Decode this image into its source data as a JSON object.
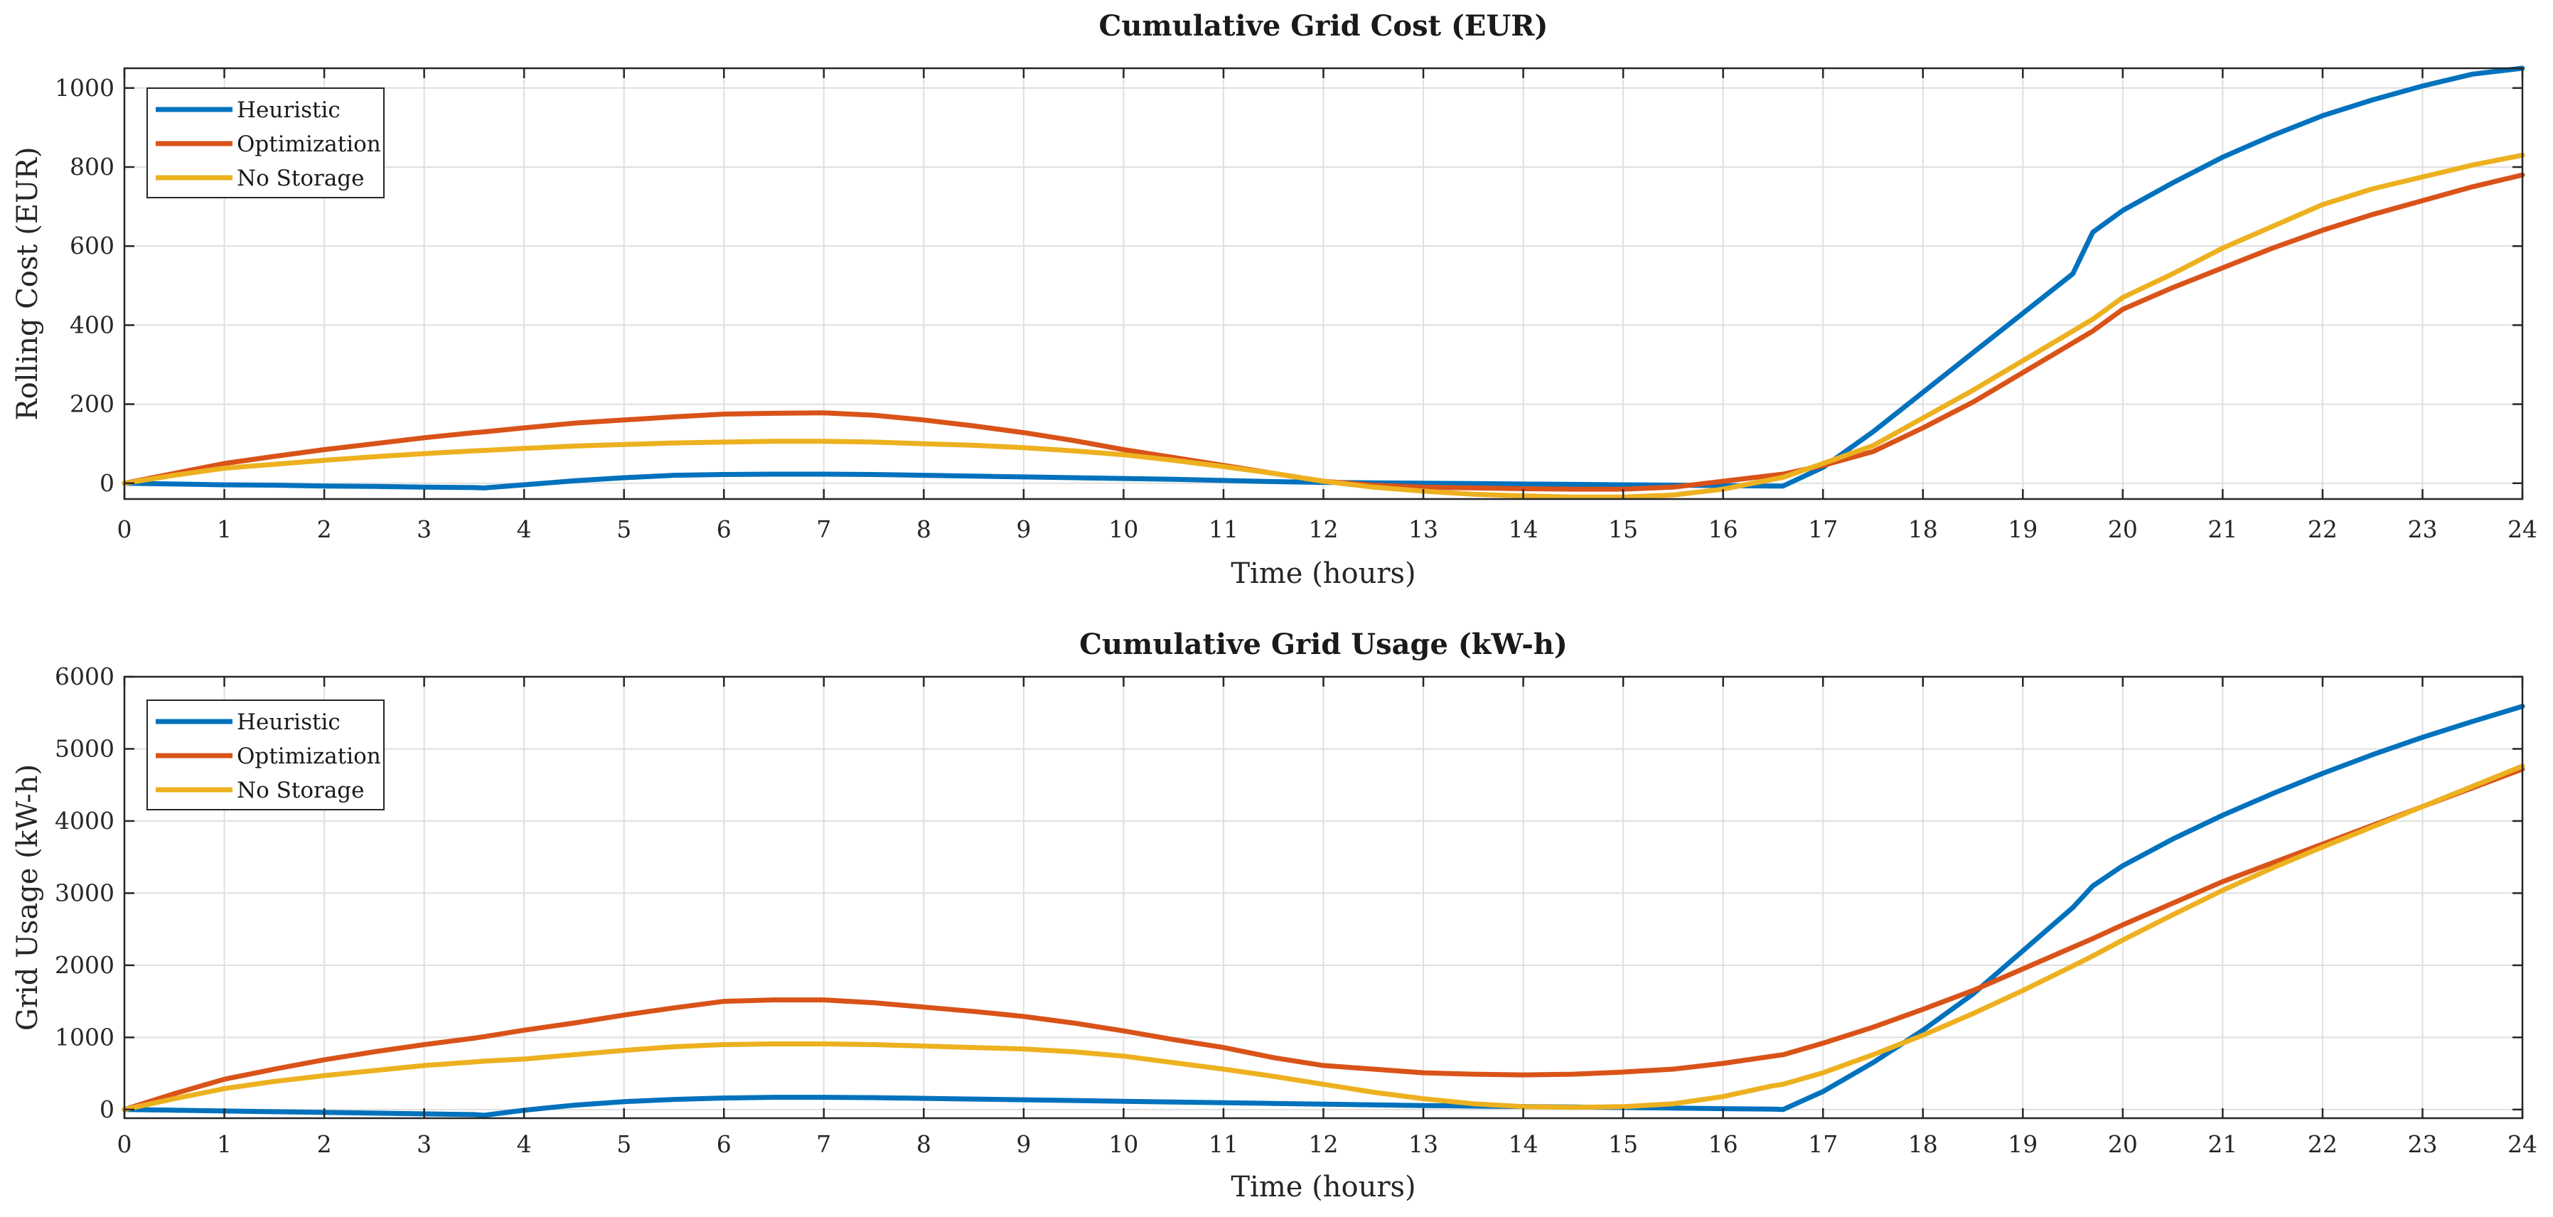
{
  "chart_data": [
    {
      "type": "line",
      "title": "Cumulative Grid Cost (EUR)",
      "xlabel": "Time (hours)",
      "ylabel": "Rolling Cost (EUR)",
      "xlim": [
        0,
        24
      ],
      "ylim": [
        -40,
        1050
      ],
      "xticks": [
        0,
        1,
        2,
        3,
        4,
        5,
        6,
        7,
        8,
        9,
        10,
        11,
        12,
        13,
        14,
        15,
        16,
        17,
        18,
        19,
        20,
        21,
        22,
        23,
        24
      ],
      "yticks": [
        0,
        200,
        400,
        600,
        800,
        1000
      ],
      "grid": true,
      "legend_position": "top-left",
      "x": [
        0,
        0.5,
        1,
        1.5,
        2,
        2.5,
        3,
        3.5,
        3.6,
        4,
        4.5,
        5,
        5.5,
        6,
        6.5,
        7,
        7.5,
        8,
        8.5,
        9,
        9.5,
        10,
        10.5,
        11,
        11.5,
        12,
        12.5,
        13,
        13.5,
        14,
        14.5,
        15,
        15.5,
        16,
        16.5,
        16.6,
        17,
        17.5,
        18,
        18.5,
        19,
        19.5,
        19.7,
        20,
        20.5,
        21,
        21.5,
        22,
        22.5,
        23,
        23.5,
        24
      ],
      "series": [
        {
          "name": "Heuristic",
          "color": "#0072BD",
          "values": [
            0,
            -2,
            -4,
            -5,
            -7,
            -8,
            -10,
            -11,
            -12,
            -4,
            6,
            14,
            20,
            22,
            23,
            23,
            22,
            20,
            18,
            16,
            14,
            12,
            10,
            7,
            4,
            2,
            1,
            0,
            -1,
            -2,
            -3,
            -4,
            -5,
            -6,
            -7,
            -7,
            40,
            130,
            230,
            330,
            430,
            530,
            635,
            690,
            760,
            825,
            880,
            930,
            970,
            1005,
            1035,
            1050
          ]
        },
        {
          "name": "Optimization",
          "color": "#D95319",
          "values": [
            0,
            25,
            50,
            68,
            85,
            100,
            115,
            128,
            130,
            140,
            152,
            160,
            168,
            175,
            177,
            178,
            172,
            160,
            145,
            128,
            108,
            85,
            65,
            45,
            25,
            5,
            -5,
            -10,
            -12,
            -14,
            -15,
            -15,
            -10,
            5,
            20,
            23,
            45,
            80,
            140,
            205,
            280,
            355,
            385,
            440,
            495,
            545,
            595,
            640,
            680,
            715,
            750,
            780
          ]
        },
        {
          "name": "No Storage",
          "color": "#EDB120",
          "values": [
            0,
            20,
            38,
            48,
            58,
            67,
            75,
            82,
            83,
            88,
            94,
            98,
            102,
            104,
            106,
            106,
            104,
            100,
            96,
            90,
            82,
            72,
            58,
            42,
            25,
            5,
            -10,
            -20,
            -28,
            -32,
            -35,
            -35,
            -30,
            -15,
            10,
            15,
            50,
            95,
            165,
            235,
            310,
            385,
            415,
            470,
            530,
            595,
            650,
            705,
            745,
            775,
            805,
            830
          ]
        }
      ]
    },
    {
      "type": "line",
      "title": "Cumulative Grid Usage (kW-h)",
      "xlabel": "Time (hours)",
      "ylabel": "Grid Usage (kW-h)",
      "xlim": [
        0,
        24
      ],
      "ylim": [
        -120,
        6000
      ],
      "xticks": [
        0,
        1,
        2,
        3,
        4,
        5,
        6,
        7,
        8,
        9,
        10,
        11,
        12,
        13,
        14,
        15,
        16,
        17,
        18,
        19,
        20,
        21,
        22,
        23,
        24
      ],
      "yticks": [
        0,
        1000,
        2000,
        3000,
        4000,
        5000,
        6000
      ],
      "grid": true,
      "legend_position": "top-left",
      "x": [
        0,
        0.5,
        1,
        1.5,
        2,
        2.5,
        3,
        3.5,
        3.6,
        4,
        4.5,
        5,
        5.5,
        6,
        6.5,
        7,
        7.5,
        8,
        8.5,
        9,
        9.5,
        10,
        10.5,
        11,
        11.5,
        12,
        12.5,
        13,
        13.5,
        14,
        14.5,
        15,
        15.5,
        16,
        16.5,
        16.6,
        17,
        17.5,
        18,
        18.5,
        19,
        19.5,
        19.7,
        20,
        20.5,
        21,
        21.5,
        22,
        22.5,
        23,
        23.5,
        24
      ],
      "series": [
        {
          "name": "Heuristic",
          "color": "#0072BD",
          "values": [
            0,
            -10,
            -20,
            -30,
            -40,
            -50,
            -60,
            -70,
            -80,
            -10,
            60,
            110,
            140,
            160,
            170,
            170,
            165,
            155,
            145,
            135,
            125,
            115,
            105,
            95,
            85,
            75,
            65,
            55,
            48,
            42,
            35,
            28,
            20,
            12,
            5,
            0,
            250,
            650,
            1100,
            1600,
            2200,
            2800,
            3100,
            3380,
            3750,
            4080,
            4380,
            4660,
            4920,
            5160,
            5380,
            5590
          ]
        },
        {
          "name": "Optimization",
          "color": "#D95319",
          "values": [
            0,
            220,
            420,
            560,
            690,
            800,
            900,
            990,
            1010,
            1100,
            1200,
            1310,
            1410,
            1500,
            1520,
            1520,
            1480,
            1420,
            1360,
            1290,
            1200,
            1090,
            970,
            860,
            720,
            610,
            560,
            510,
            490,
            480,
            490,
            520,
            560,
            640,
            740,
            760,
            920,
            1140,
            1390,
            1650,
            1950,
            2250,
            2370,
            2560,
            2860,
            3160,
            3420,
            3680,
            3940,
            4200,
            4460,
            4720
          ]
        },
        {
          "name": "No Storage",
          "color": "#EDB120",
          "values": [
            0,
            150,
            290,
            390,
            470,
            540,
            610,
            660,
            670,
            700,
            760,
            820,
            870,
            900,
            910,
            910,
            900,
            880,
            860,
            840,
            800,
            740,
            650,
            560,
            460,
            350,
            240,
            150,
            80,
            40,
            30,
            40,
            80,
            180,
            330,
            350,
            510,
            760,
            1030,
            1330,
            1650,
            1990,
            2130,
            2350,
            2700,
            3040,
            3350,
            3640,
            3920,
            4200,
            4480,
            4760
          ]
        }
      ]
    }
  ]
}
